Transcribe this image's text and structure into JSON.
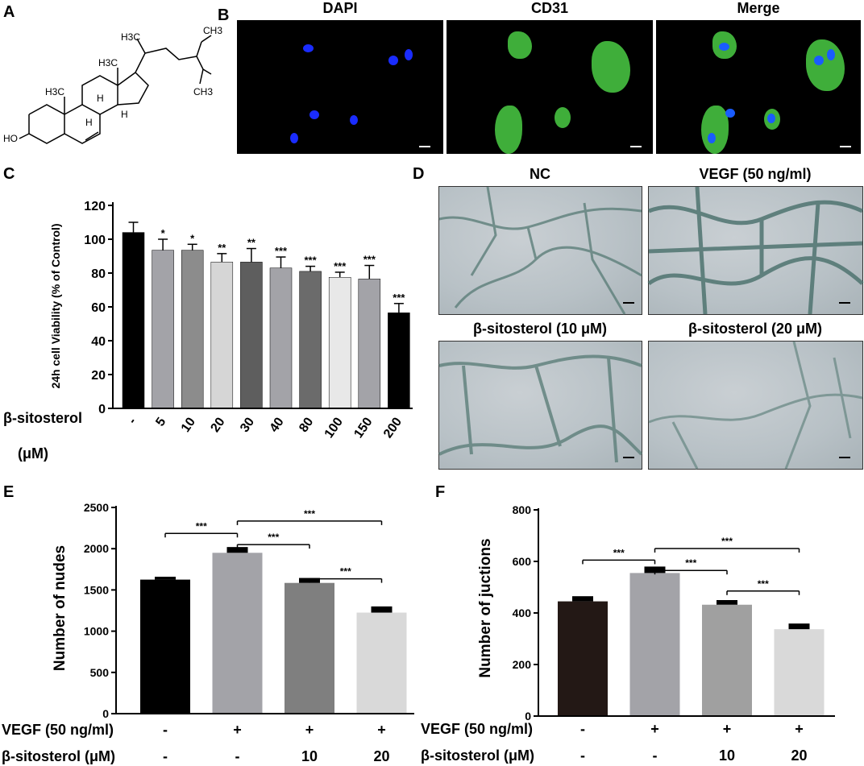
{
  "panels": {
    "a": {
      "letter": "A",
      "labels": {
        "ch3_top": "CH3",
        "h3c_side": "H3C",
        "h3c_mid": "H3C",
        "h3c_ring": "H3C",
        "ch3_bottom": "CH3",
        "h_1": "H",
        "h_2": "H",
        "h_3": "H",
        "ho": "HO"
      }
    },
    "b": {
      "letter": "B",
      "titles": [
        "DAPI",
        "CD31",
        "Merge"
      ]
    },
    "c": {
      "letter": "C"
    },
    "d": {
      "letter": "D",
      "titles": [
        "NC",
        "VEGF (50 ng/ml)",
        "β-sitosterol (10 μM)",
        "β-sitosterol (20 μM)"
      ]
    },
    "e": {
      "letter": "E"
    },
    "f": {
      "letter": "F"
    }
  },
  "colors": {
    "black_bar": "#000000",
    "dark_brown_bar": "#231815",
    "mid_gray": "#a3a3a8",
    "dark_gray": "#7f7f7f",
    "light_gray": "#d9d9d9",
    "dapi_blue": "#1a2cff",
    "cd31_green": "#3fae3a"
  },
  "chart_data": [
    {
      "panel": "C",
      "type": "bar",
      "ylabel": "24h cell Viability (% of Control)",
      "xlabel": "β-sitosterol\n(μM)",
      "categories": [
        "-",
        "5",
        "10",
        "20",
        "30",
        "40",
        "80",
        "100",
        "150",
        "200"
      ],
      "values": [
        104,
        93.5,
        93.5,
        86.5,
        86.5,
        83,
        81,
        77.5,
        76.5,
        56.5
      ],
      "errors": [
        6,
        6.5,
        3.5,
        5,
        8,
        6.5,
        3,
        3,
        8,
        5.5
      ],
      "significance": [
        "",
        "*",
        "*",
        "**",
        "**",
        "***",
        "***",
        "***",
        "***",
        "***"
      ],
      "bar_colors": [
        "#000000",
        "#a3a3a8",
        "#8c8c8c",
        "#d6d6d6",
        "#5e5e5e",
        "#a3a3a8",
        "#6b6b6b",
        "#e8e8e8",
        "#a3a3a8",
        "#000000"
      ],
      "ylim": [
        0,
        120
      ],
      "yticks": [
        0,
        20,
        40,
        60,
        80,
        100,
        120
      ]
    },
    {
      "panel": "E",
      "type": "bar",
      "ylabel": "Number of nudes",
      "row_labels": [
        "VEGF (50 ng/ml)",
        "β-sitosterol (μM)"
      ],
      "row_values": [
        [
          "-",
          "+",
          "+",
          "+"
        ],
        [
          "-",
          "-",
          "10",
          "20"
        ]
      ],
      "values": [
        1625,
        1950,
        1585,
        1225
      ],
      "errors": [
        35,
        70,
        60,
        75
      ],
      "bar_colors": [
        "#000000",
        "#a3a3a8",
        "#7f7f7f",
        "#d9d9d9"
      ],
      "ylim": [
        0,
        2500
      ],
      "yticks": [
        0,
        500,
        1000,
        1500,
        2000,
        2500
      ],
      "comparisons": [
        {
          "from": 0,
          "to": 1,
          "label": "***",
          "y": 2185
        },
        {
          "from": 1,
          "to": 2,
          "label": "***",
          "y": 2050
        },
        {
          "from": 1,
          "to": 3,
          "label": "***",
          "y": 2335
        },
        {
          "from": 2,
          "to": 3,
          "label": "***",
          "y": 1635
        }
      ]
    },
    {
      "panel": "F",
      "type": "bar",
      "ylabel": "Number of juctions",
      "row_labels": [
        "VEGF (50 ng/ml)",
        "β-sitosterol (μM)"
      ],
      "row_values": [
        [
          "-",
          "+",
          "+",
          "+"
        ],
        [
          "-",
          "-",
          "10",
          "20"
        ]
      ],
      "values": [
        445,
        555,
        432,
        337
      ],
      "errors": [
        20,
        25,
        18,
        22
      ],
      "bar_colors": [
        "#231815",
        "#a3a3a8",
        "#a0a0a0",
        "#d9d9d9"
      ],
      "ylim": [
        0,
        800
      ],
      "yticks": [
        0,
        200,
        400,
        600,
        800
      ],
      "comparisons": [
        {
          "from": 0,
          "to": 1,
          "label": "***",
          "y": 605
        },
        {
          "from": 1,
          "to": 2,
          "label": "***",
          "y": 565
        },
        {
          "from": 1,
          "to": 3,
          "label": "***",
          "y": 650
        },
        {
          "from": 2,
          "to": 3,
          "label": "***",
          "y": 485
        }
      ]
    }
  ]
}
